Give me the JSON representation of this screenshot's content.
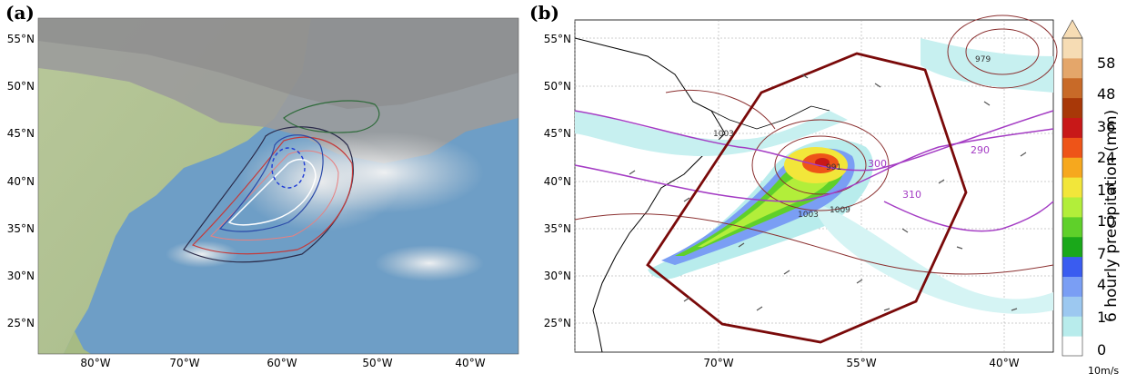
{
  "panel_a": {
    "label": "(a)",
    "lat_labels": [
      "55°N",
      "50°N",
      "45°N",
      "40°N",
      "35°N",
      "30°N",
      "25°N"
    ],
    "lon_labels": [
      "80°W",
      "70°W",
      "60°W",
      "50°W",
      "40°W"
    ]
  },
  "panel_b": {
    "label": "(b)",
    "lat_labels": [
      "55°N",
      "50°N",
      "45°N",
      "40°N",
      "35°N",
      "30°N",
      "25°N"
    ],
    "lon_labels": [
      "70°W",
      "55°W",
      "40°W"
    ],
    "contour_labels": [
      "1003",
      "991",
      "1003",
      "1009",
      "979",
      "290",
      "300",
      "310"
    ]
  },
  "colorbar": {
    "title": "6 hourly precipitation  (mm)",
    "ticks": [
      "58",
      "48",
      "36",
      "24",
      "16",
      "10",
      "7",
      "4",
      "1",
      "0"
    ],
    "colors": [
      "#ffffff",
      "#b8ecec",
      "#9cc8f0",
      "#7a9ef4",
      "#3a5cf0",
      "#1aa81a",
      "#5fd02a",
      "#b2ee3a",
      "#f2e63a",
      "#f6a81e",
      "#ee5418",
      "#c81818",
      "#a83808",
      "#c86a28",
      "#e4a66a",
      "#f6dcb4"
    ]
  },
  "vector_key": "10m/s"
}
